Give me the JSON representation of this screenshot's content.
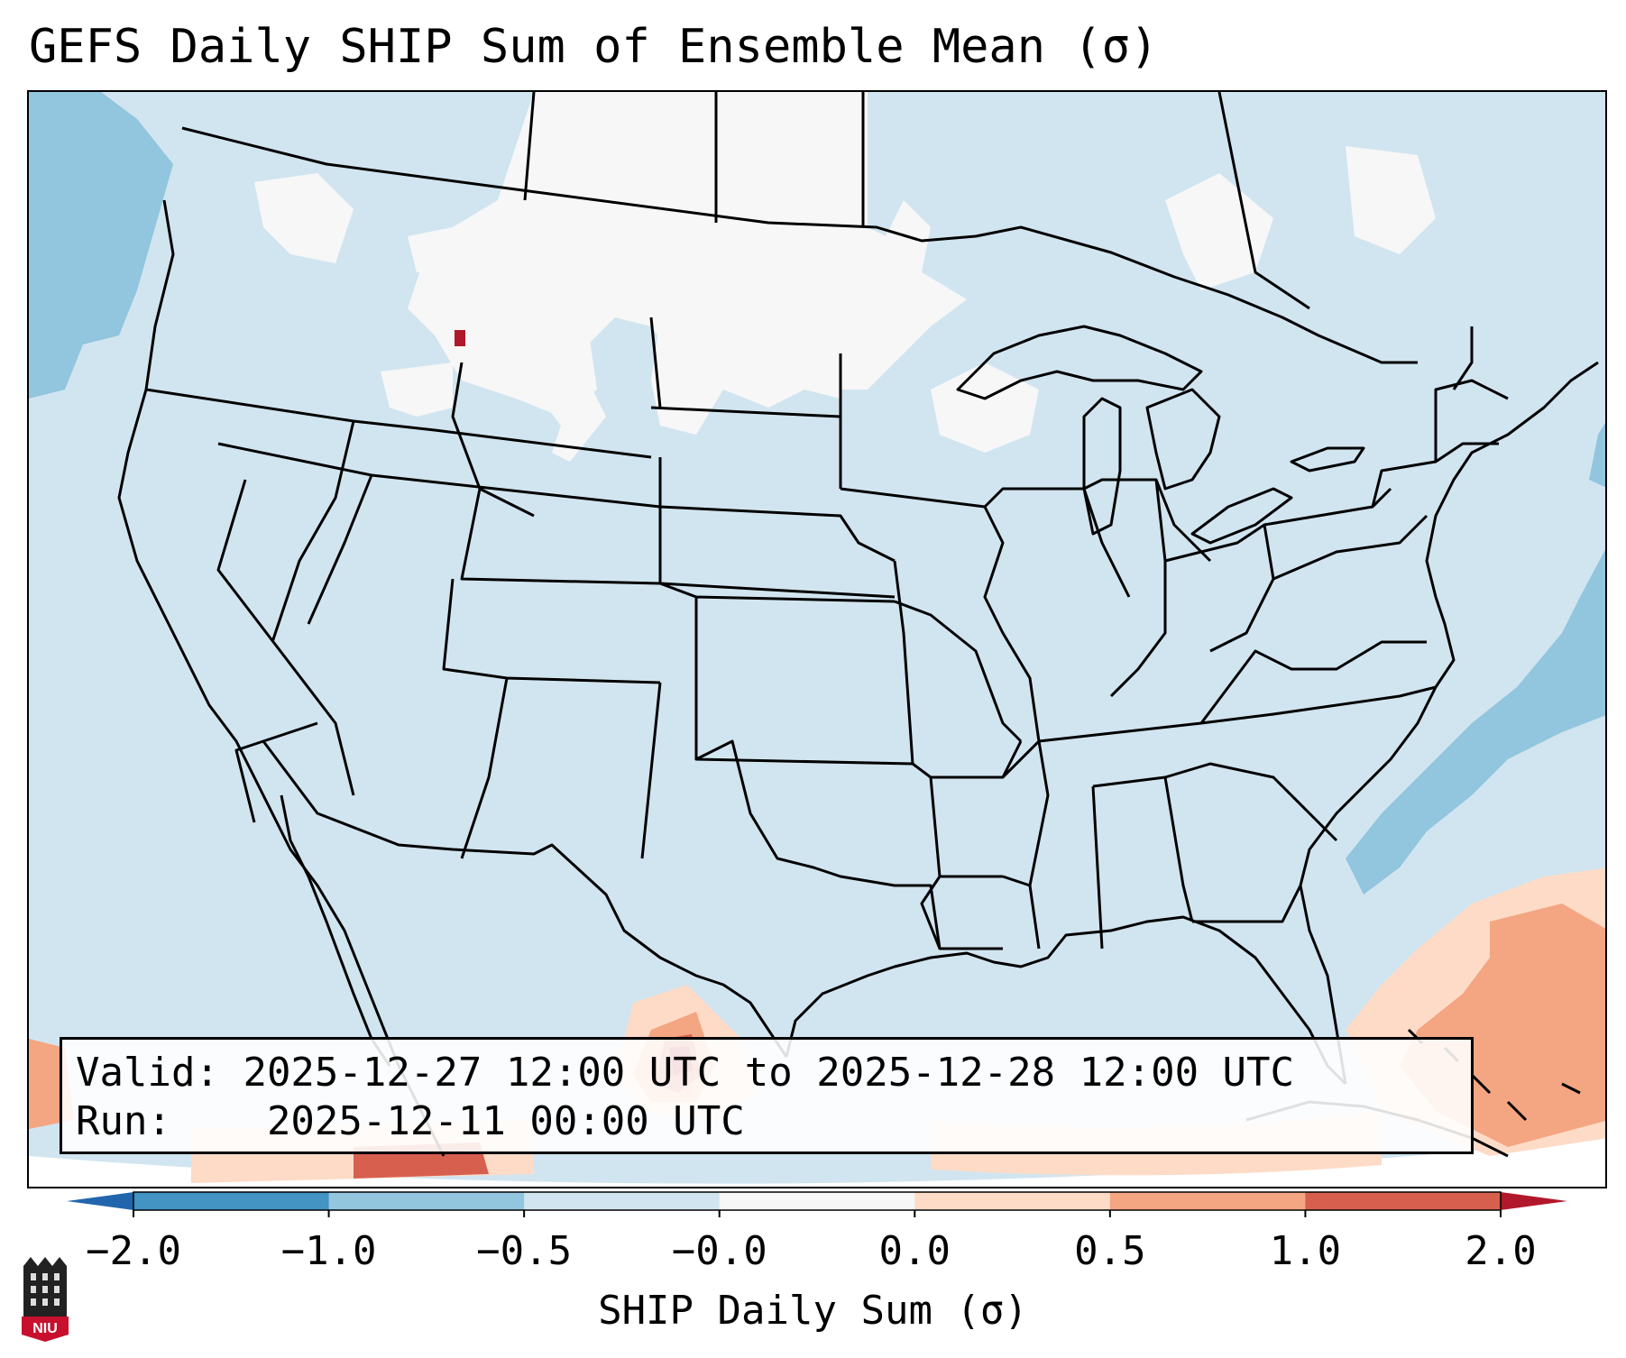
{
  "title": "GEFS Daily SHIP Sum of Ensemble Mean (σ)",
  "info": {
    "valid_label": "Valid:",
    "valid_value": "2025-12-27 12:00 UTC to 2025-12-28 12:00 UTC",
    "run_label": "Run:",
    "run_value": "2025-12-11 00:00 UTC"
  },
  "colorbar": {
    "label": "SHIP Daily Sum (σ)",
    "ticks": [
      "−2.0",
      "−1.0",
      "−0.5",
      "−0.0",
      "0.0",
      "0.5",
      "1.0",
      "2.0"
    ],
    "colors": [
      "#4393c3",
      "#92c5de",
      "#d1e5f0",
      "#f7f7f7",
      "#fddbc7",
      "#f4a582",
      "#d6604d"
    ],
    "extend_low_color": "#2166ac",
    "extend_high_color": "#b2182b"
  },
  "map": {
    "projection": "lambert-conformal",
    "region": "CONUS",
    "background_color": "#d1e5f0",
    "features": [
      "state-borders",
      "country-borders",
      "coastlines",
      "great-lakes"
    ]
  },
  "logo": {
    "name": "niu-logo-icon",
    "text": "NIU"
  }
}
